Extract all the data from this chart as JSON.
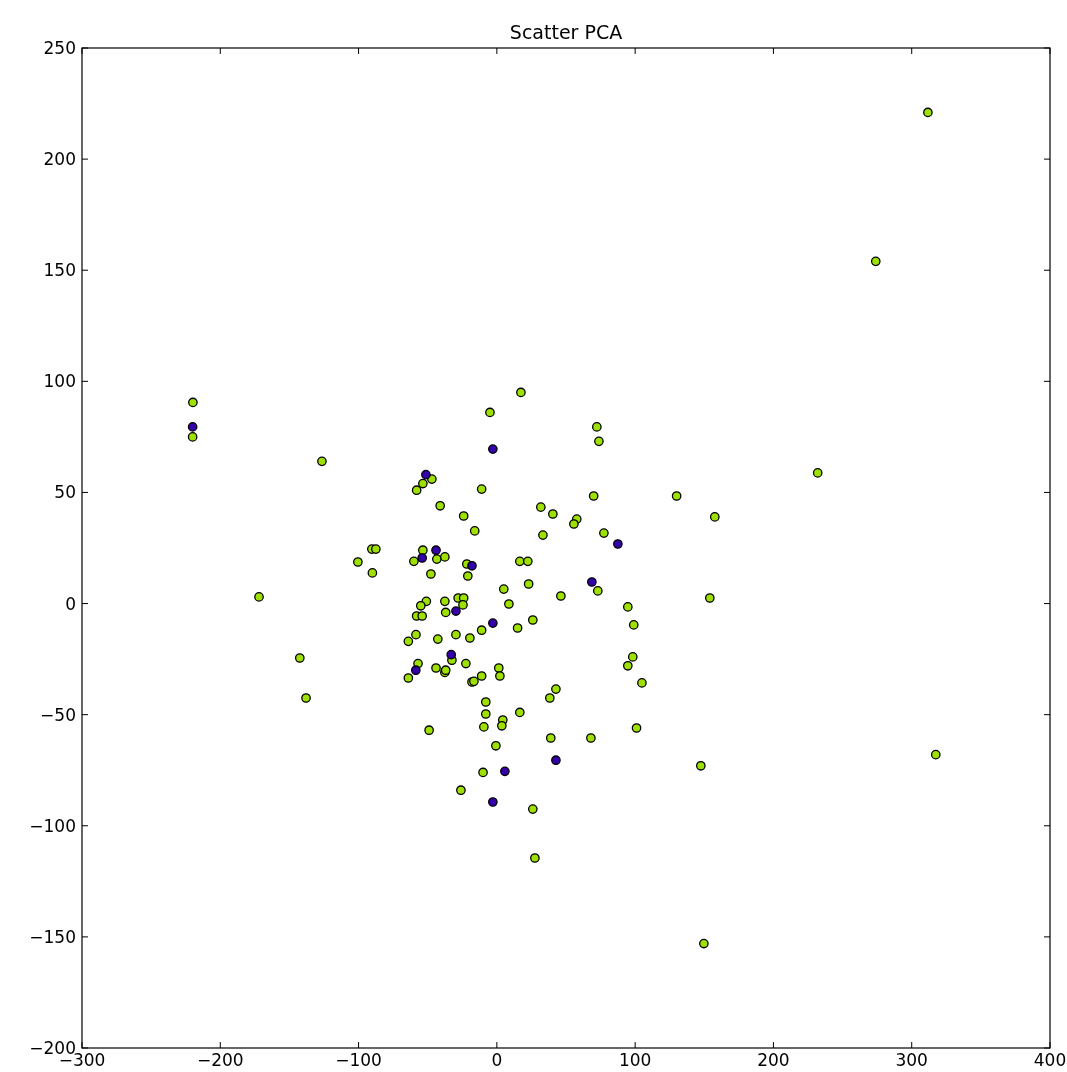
{
  "chart_data": {
    "type": "scatter",
    "title": "Scatter PCA",
    "xlim": [
      -300,
      400
    ],
    "ylim": [
      -200,
      250
    ],
    "xticks": [
      -300,
      -200,
      -100,
      0,
      100,
      200,
      300,
      400
    ],
    "yticks": [
      -200,
      -150,
      -100,
      -50,
      0,
      50,
      100,
      150,
      200,
      250
    ],
    "grid": false,
    "marker": "circle",
    "series": [
      {
        "color": "#9ee000",
        "x": [
          -219.8,
          -220,
          -126.5,
          -172,
          -142.5,
          -138,
          -100.5,
          -90.4,
          -87.5,
          -90,
          -58,
          -53.5,
          -47,
          -41,
          -53.5,
          -60,
          -43.4,
          -37.6,
          -47.7,
          -51,
          -55,
          -58,
          -54,
          -58.5,
          -64,
          -57,
          -64,
          -37.6,
          -37,
          -42.7,
          -44,
          -37.6,
          -37,
          -32.5,
          -49,
          -28,
          -24,
          -24.5,
          -29.6,
          -22.4,
          -24,
          -16,
          -11,
          -21.7,
          -21,
          -19.5,
          -18,
          -16.6,
          -11,
          -11,
          -8,
          -8,
          -9.4,
          -10,
          -26,
          -5,
          17.4,
          1.4,
          2.2,
          -0.7,
          4.3,
          3.6,
          5,
          8.7,
          15,
          16.6,
          16.6,
          22.4,
          23,
          26,
          26,
          27.5,
          31.8,
          33.3,
          40.5,
          46.3,
          42.7,
          38.3,
          39,
          57.8,
          55.7,
          70,
          72.3,
          73.8,
          73,
          77.4,
          68,
          94.7,
          99,
          94.7,
          98.3,
          104.9,
          101,
          130,
          157.6,
          154,
          147.5,
          149.7,
          232,
          274,
          311.7,
          317.4
        ],
        "values": [
          90.5,
          75,
          64,
          3,
          -24.5,
          -42.5,
          18.7,
          24.5,
          24.5,
          13.8,
          51,
          54,
          56,
          44,
          24,
          19,
          20,
          21,
          13.3,
          1,
          -1,
          -5.6,
          -5.6,
          -14,
          -17,
          -27,
          -33.5,
          1,
          -4,
          -16,
          -29,
          -31,
          -30,
          -25.5,
          -57,
          2.5,
          2.5,
          -0.6,
          -14,
          -27,
          39.4,
          32.7,
          51.5,
          17.8,
          12.4,
          -15.5,
          -35.3,
          -35,
          -12,
          -32.6,
          -44.3,
          -49.7,
          -55.5,
          -76,
          -84,
          86,
          95,
          -29,
          -32.6,
          -64,
          -52.4,
          -55,
          6.5,
          -0.2,
          -11,
          -49,
          19,
          19,
          8.8,
          -7.4,
          -92.5,
          -114.5,
          43.4,
          30.8,
          40.3,
          3.4,
          -38.5,
          -42.5,
          -60.5,
          38,
          35.8,
          48.4,
          79.5,
          73,
          5.7,
          31.7,
          -60.5,
          -1.5,
          -9.6,
          -28,
          -24,
          -35.7,
          -56,
          48.4,
          39,
          2.5,
          -73,
          -153,
          58.8,
          154,
          221,
          -68
        ]
      },
      {
        "color": "#3300aa",
        "x": [
          -220,
          -51.3,
          -44,
          -54,
          -18,
          -2.9,
          87.5,
          68.7,
          -29.6,
          -2.9,
          -33,
          -58.6,
          42.7,
          5.8,
          -2.9
        ],
        "values": [
          79.5,
          58,
          24,
          20.5,
          17,
          69.5,
          26.8,
          9.7,
          -3.4,
          -8.8,
          -23,
          -30,
          -70.5,
          -75.5,
          -89.3
        ]
      }
    ]
  }
}
